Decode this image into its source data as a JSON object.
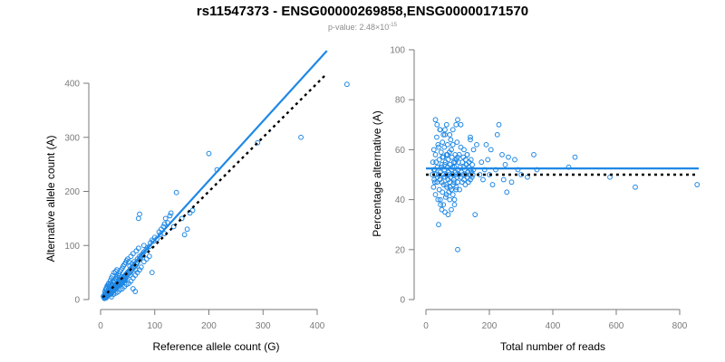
{
  "title": "rs11547373 - ENSG00000269858,ENSG00000171570",
  "subtitle": {
    "prefix": "p-value: 2.48×10",
    "exponent": "-15"
  },
  "colors": {
    "points": "#1f88e5",
    "fit_line": "#1f88e5",
    "reference_line": "#000000",
    "axis": "#7a7a7a"
  },
  "chart_data": [
    {
      "type": "scatter",
      "xlabel": "Reference allele count (G)",
      "ylabel": "Alternative allele count (A)",
      "xlim": [
        0,
        420
      ],
      "ylim": [
        0,
        410
      ],
      "xticks": [
        0,
        100,
        200,
        300,
        400
      ],
      "yticks": [
        0,
        100,
        200,
        300,
        400
      ],
      "grid": false,
      "fit_line": {
        "x": [
          4,
          418
        ],
        "y": [
          4,
          460
        ]
      },
      "reference_line": {
        "x": [
          4,
          418
        ],
        "y": [
          4,
          418
        ]
      },
      "points": [
        [
          5,
          6
        ],
        [
          6,
          4
        ],
        [
          7,
          8
        ],
        [
          8,
          5
        ],
        [
          8,
          10
        ],
        [
          9,
          7
        ],
        [
          10,
          12
        ],
        [
          10,
          3
        ],
        [
          11,
          9
        ],
        [
          12,
          15
        ],
        [
          12,
          6
        ],
        [
          13,
          11
        ],
        [
          14,
          18
        ],
        [
          14,
          8
        ],
        [
          15,
          13
        ],
        [
          16,
          20
        ],
        [
          16,
          10
        ],
        [
          17,
          14
        ],
        [
          18,
          22
        ],
        [
          18,
          9
        ],
        [
          19,
          16
        ],
        [
          20,
          25
        ],
        [
          20,
          12
        ],
        [
          21,
          18
        ],
        [
          22,
          28
        ],
        [
          22,
          14
        ],
        [
          23,
          20
        ],
        [
          24,
          32
        ],
        [
          24,
          16
        ],
        [
          25,
          22
        ],
        [
          26,
          35
        ],
        [
          26,
          18
        ],
        [
          27,
          24
        ],
        [
          28,
          38
        ],
        [
          28,
          20
        ],
        [
          29,
          26
        ],
        [
          30,
          42
        ],
        [
          30,
          22
        ],
        [
          31,
          28
        ],
        [
          32,
          45
        ],
        [
          32,
          25
        ],
        [
          33,
          30
        ],
        [
          34,
          48
        ],
        [
          34,
          27
        ],
        [
          35,
          32
        ],
        [
          36,
          52
        ],
        [
          36,
          29
        ],
        [
          37,
          34
        ],
        [
          38,
          55
        ],
        [
          38,
          31
        ],
        [
          39,
          36
        ],
        [
          40,
          58
        ],
        [
          40,
          33
        ],
        [
          41,
          38
        ],
        [
          42,
          62
        ],
        [
          42,
          35
        ],
        [
          43,
          40
        ],
        [
          44,
          65
        ],
        [
          44,
          37
        ],
        [
          45,
          42
        ],
        [
          46,
          68
        ],
        [
          46,
          39
        ],
        [
          47,
          44
        ],
        [
          48,
          72
        ],
        [
          48,
          41
        ],
        [
          50,
          46
        ],
        [
          50,
          75
        ],
        [
          52,
          48
        ],
        [
          52,
          70
        ],
        [
          54,
          50
        ],
        [
          54,
          62
        ],
        [
          56,
          52
        ],
        [
          56,
          80
        ],
        [
          58,
          55
        ],
        [
          58,
          66
        ],
        [
          60,
          58
        ],
        [
          60,
          85
        ],
        [
          62,
          60
        ],
        [
          62,
          70
        ],
        [
          64,
          62
        ],
        [
          66,
          65
        ],
        [
          66,
          90
        ],
        [
          68,
          68
        ],
        [
          68,
          75
        ],
        [
          70,
          72
        ],
        [
          70,
          95
        ],
        [
          72,
          75
        ],
        [
          72,
          80
        ],
        [
          74,
          78
        ],
        [
          76,
          82
        ],
        [
          78,
          85
        ],
        [
          80,
          88
        ],
        [
          80,
          100
        ],
        [
          84,
          92
        ],
        [
          86,
          96
        ],
        [
          90,
          98
        ],
        [
          92,
          105
        ],
        [
          95,
          110
        ],
        [
          98,
          108
        ],
        [
          100,
          115
        ],
        [
          104,
          112
        ],
        [
          108,
          125
        ],
        [
          110,
          120
        ],
        [
          112,
          130
        ],
        [
          116,
          135
        ],
        [
          118,
          140
        ],
        [
          120,
          150
        ],
        [
          124,
          142
        ],
        [
          128,
          155
        ],
        [
          130,
          160
        ],
        [
          15,
          30
        ],
        [
          18,
          35
        ],
        [
          20,
          40
        ],
        [
          22,
          44
        ],
        [
          25,
          50
        ],
        [
          28,
          52
        ],
        [
          30,
          55
        ],
        [
          12,
          25
        ],
        [
          10,
          20
        ],
        [
          14,
          28
        ],
        [
          20,
          5
        ],
        [
          24,
          10
        ],
        [
          28,
          12
        ],
        [
          32,
          14
        ],
        [
          36,
          18
        ],
        [
          40,
          20
        ],
        [
          44,
          24
        ],
        [
          48,
          28
        ],
        [
          52,
          30
        ],
        [
          56,
          34
        ],
        [
          60,
          40
        ],
        [
          64,
          45
        ],
        [
          68,
          50
        ],
        [
          72,
          55
        ],
        [
          60,
          20
        ],
        [
          64,
          15
        ],
        [
          40,
          30
        ],
        [
          45,
          35
        ],
        [
          55,
          45
        ],
        [
          65,
          55
        ],
        [
          75,
          60
        ],
        [
          80,
          70
        ],
        [
          85,
          75
        ],
        [
          90,
          80
        ],
        [
          95,
          50
        ],
        [
          70,
          150
        ],
        [
          72,
          158
        ],
        [
          118,
          122
        ],
        [
          135,
          135
        ],
        [
          140,
          198
        ],
        [
          150,
          150
        ],
        [
          155,
          120
        ],
        [
          160,
          130
        ],
        [
          165,
          160
        ],
        [
          170,
          165
        ],
        [
          200,
          270
        ],
        [
          215,
          240
        ],
        [
          290,
          290
        ],
        [
          370,
          300
        ],
        [
          455,
          398
        ],
        [
          8,
          14
        ],
        [
          9,
          18
        ],
        [
          11,
          21
        ],
        [
          13,
          24
        ],
        [
          16,
          26
        ],
        [
          19,
          30
        ],
        [
          23,
          34
        ],
        [
          27,
          38
        ],
        [
          31,
          40
        ],
        [
          35,
          44
        ],
        [
          7,
          2
        ],
        [
          9,
          3
        ],
        [
          11,
          5
        ],
        [
          13,
          7
        ],
        [
          15,
          9
        ],
        [
          17,
          11
        ],
        [
          19,
          13
        ],
        [
          21,
          15
        ],
        [
          23,
          17
        ],
        [
          25,
          19
        ],
        [
          27,
          21
        ],
        [
          29,
          23
        ],
        [
          31,
          25
        ],
        [
          33,
          26
        ],
        [
          35,
          27
        ],
        [
          37,
          29
        ],
        [
          39,
          31
        ],
        [
          41,
          33
        ],
        [
          43,
          35
        ],
        [
          45,
          37
        ]
      ]
    },
    {
      "type": "scatter",
      "xlabel": "Total number of reads",
      "ylabel": "Percentage alternative (A)",
      "xlim": [
        0,
        860
      ],
      "ylim": [
        0,
        100
      ],
      "xticks": [
        0,
        200,
        400,
        600,
        800
      ],
      "yticks": [
        0,
        20,
        40,
        60,
        80,
        100
      ],
      "grid": false,
      "fit_line": {
        "x": [
          0,
          860
        ],
        "y": [
          52.5,
          52.5
        ]
      },
      "reference_line": {
        "x": [
          0,
          860
        ],
        "y": [
          50,
          50
        ]
      },
      "points": [
        [
          20,
          50
        ],
        [
          22,
          55
        ],
        [
          24,
          45
        ],
        [
          25,
          60
        ],
        [
          26,
          48
        ],
        [
          28,
          52
        ],
        [
          30,
          42
        ],
        [
          30,
          58
        ],
        [
          32,
          50
        ],
        [
          34,
          65
        ],
        [
          35,
          47
        ],
        [
          36,
          53
        ],
        [
          38,
          40
        ],
        [
          38,
          62
        ],
        [
          40,
          50
        ],
        [
          42,
          56
        ],
        [
          42,
          44
        ],
        [
          44,
          68
        ],
        [
          45,
          51
        ],
        [
          46,
          38
        ],
        [
          48,
          59
        ],
        [
          50,
          47
        ],
        [
          50,
          54
        ],
        [
          52,
          63
        ],
        [
          52,
          43
        ],
        [
          54,
          50
        ],
        [
          55,
          57
        ],
        [
          56,
          46
        ],
        [
          58,
          61
        ],
        [
          58,
          52
        ],
        [
          60,
          49
        ],
        [
          60,
          66
        ],
        [
          62,
          55
        ],
        [
          62,
          41
        ],
        [
          64,
          50
        ],
        [
          65,
          58
        ],
        [
          66,
          45
        ],
        [
          68,
          53
        ],
        [
          68,
          62
        ],
        [
          70,
          48
        ],
        [
          70,
          56
        ],
        [
          72,
          43
        ],
        [
          72,
          51
        ],
        [
          74,
          59
        ],
        [
          75,
          47
        ],
        [
          76,
          54
        ],
        [
          78,
          64
        ],
        [
          78,
          49
        ],
        [
          80,
          52
        ],
        [
          80,
          44
        ],
        [
          82,
          57
        ],
        [
          84,
          50
        ],
        [
          85,
          62
        ],
        [
          86,
          46
        ],
        [
          88,
          55
        ],
        [
          88,
          48
        ],
        [
          90,
          53
        ],
        [
          90,
          40
        ],
        [
          92,
          58
        ],
        [
          94,
          51
        ],
        [
          95,
          45
        ],
        [
          96,
          56
        ],
        [
          98,
          49
        ],
        [
          98,
          63
        ],
        [
          100,
          52
        ],
        [
          100,
          47
        ],
        [
          102,
          55
        ],
        [
          104,
          50
        ],
        [
          105,
          58
        ],
        [
          106,
          44
        ],
        [
          108,
          53
        ],
        [
          110,
          49
        ],
        [
          110,
          61
        ],
        [
          112,
          51
        ],
        [
          114,
          47
        ],
        [
          115,
          55
        ],
        [
          116,
          50
        ],
        [
          118,
          57
        ],
        [
          120,
          48
        ],
        [
          120,
          53
        ],
        [
          122,
          52
        ],
        [
          124,
          46
        ],
        [
          125,
          56
        ],
        [
          126,
          50
        ],
        [
          128,
          54
        ],
        [
          130,
          49
        ],
        [
          130,
          58
        ],
        [
          132,
          51
        ],
        [
          134,
          47
        ],
        [
          135,
          53
        ],
        [
          136,
          55
        ],
        [
          138,
          50
        ],
        [
          140,
          48
        ],
        [
          140,
          52
        ],
        [
          142,
          56
        ],
        [
          144,
          51
        ],
        [
          145,
          49
        ],
        [
          146,
          54
        ],
        [
          148,
          50
        ],
        [
          150,
          52
        ],
        [
          30,
          72
        ],
        [
          35,
          70
        ],
        [
          45,
          68
        ],
        [
          55,
          66
        ],
        [
          60,
          68
        ],
        [
          65,
          70
        ],
        [
          75,
          66
        ],
        [
          85,
          68
        ],
        [
          95,
          70
        ],
        [
          100,
          72
        ],
        [
          110,
          70
        ],
        [
          120,
          60
        ],
        [
          130,
          58
        ],
        [
          140,
          65
        ],
        [
          150,
          60
        ],
        [
          60,
          35
        ],
        [
          70,
          34
        ],
        [
          80,
          36
        ],
        [
          90,
          38
        ],
        [
          155,
          34
        ],
        [
          100,
          20
        ],
        [
          140,
          64
        ],
        [
          160,
          62
        ],
        [
          170,
          50
        ],
        [
          175,
          55
        ],
        [
          180,
          48
        ],
        [
          185,
          52
        ],
        [
          190,
          62
        ],
        [
          195,
          56
        ],
        [
          200,
          50
        ],
        [
          205,
          60
        ],
        [
          210,
          46
        ],
        [
          220,
          52
        ],
        [
          225,
          66
        ],
        [
          230,
          70
        ],
        [
          240,
          58
        ],
        [
          245,
          48
        ],
        [
          250,
          54
        ],
        [
          255,
          43
        ],
        [
          260,
          57
        ],
        [
          270,
          47
        ],
        [
          280,
          56
        ],
        [
          290,
          52
        ],
        [
          300,
          50
        ],
        [
          320,
          49
        ],
        [
          340,
          58
        ],
        [
          350,
          52
        ],
        [
          450,
          53
        ],
        [
          470,
          57
        ],
        [
          580,
          49
        ],
        [
          660,
          45
        ],
        [
          855,
          46
        ],
        [
          40,
          30
        ],
        [
          50,
          36
        ],
        [
          45,
          40
        ],
        [
          55,
          38
        ],
        [
          65,
          42
        ],
        [
          75,
          40
        ],
        [
          85,
          42
        ],
        [
          95,
          44
        ],
        [
          25,
          52
        ],
        [
          28,
          47
        ],
        [
          32,
          55
        ],
        [
          36,
          49
        ],
        [
          40,
          61
        ],
        [
          44,
          48
        ],
        [
          48,
          53
        ],
        [
          52,
          57
        ],
        [
          56,
          49
        ],
        [
          60,
          54
        ],
        [
          64,
          46
        ],
        [
          68,
          58
        ],
        [
          72,
          50
        ],
        [
          76,
          45
        ],
        [
          80,
          60
        ],
        [
          84,
          53
        ],
        [
          88,
          47
        ],
        [
          92,
          55
        ],
        [
          96,
          50
        ],
        [
          100,
          57
        ]
      ]
    }
  ]
}
